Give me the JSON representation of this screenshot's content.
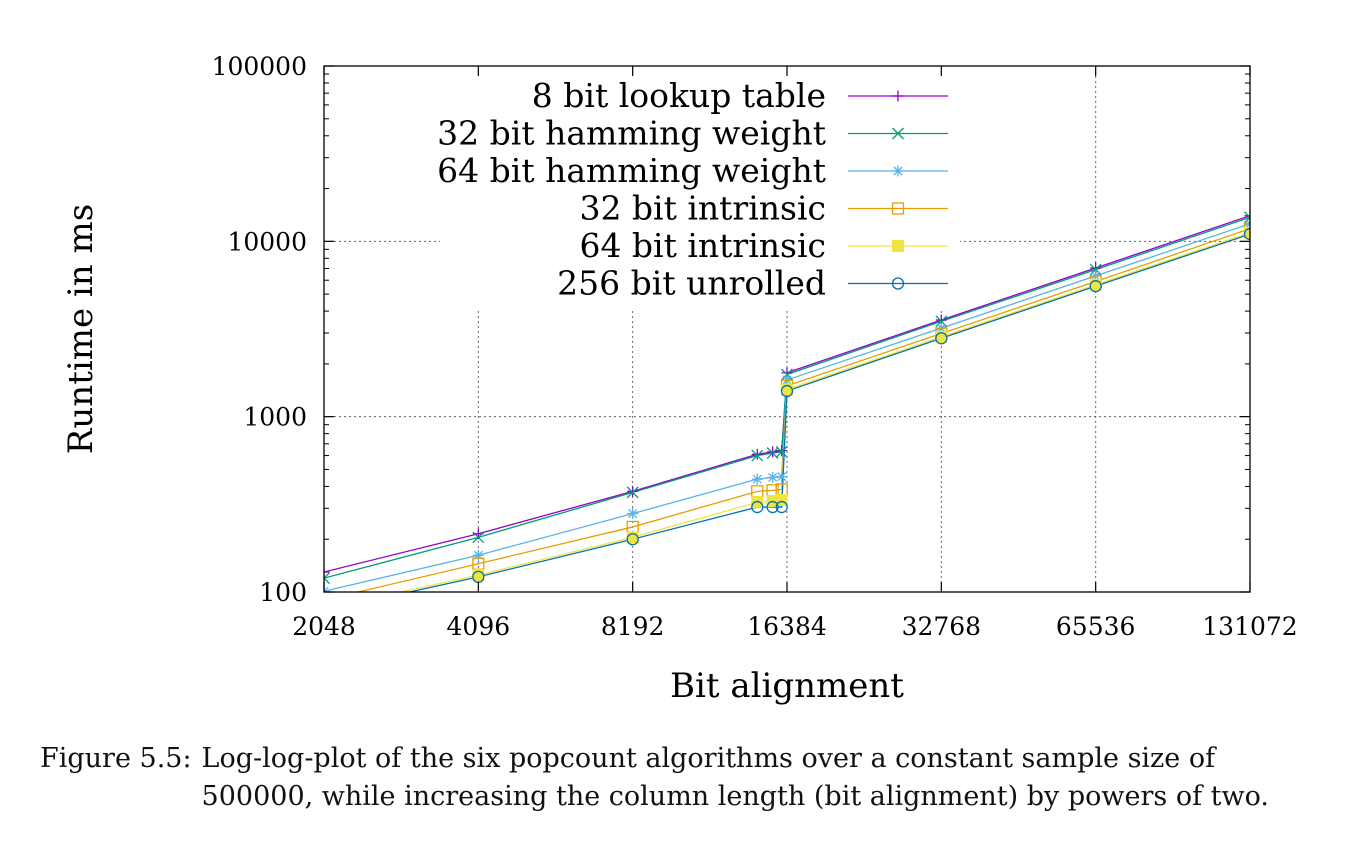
{
  "chart_data": {
    "type": "line",
    "xlabel": "Bit alignment",
    "ylabel": "Runtime in ms",
    "x_scale": "log2",
    "y_scale": "log10",
    "xlim": [
      2048,
      131072
    ],
    "ylim": [
      100,
      100000
    ],
    "x_ticks": [
      "2048",
      "4096",
      "8192",
      "16384",
      "32768",
      "65536",
      "131072"
    ],
    "y_ticks": [
      "100",
      "1000",
      "10000",
      "100000"
    ],
    "grid": true,
    "legend_position": "top-right",
    "x": [
      2048,
      4096,
      8192,
      14336,
      15360,
      16000,
      16384,
      32768,
      65536,
      131072
    ],
    "series": [
      {
        "name": "8 bit lookup table",
        "color": "#9400d3",
        "marker": "plus",
        "values": [
          130,
          215,
          375,
          610,
          630,
          640,
          1780,
          3560,
          7050,
          14000
        ]
      },
      {
        "name": "32 bit hamming weight",
        "color": "#009e73",
        "marker": "cross",
        "values": [
          120,
          205,
          370,
          600,
          620,
          630,
          1740,
          3500,
          6900,
          13700
        ]
      },
      {
        "name": "64 bit hamming weight",
        "color": "#56b4e9",
        "marker": "asterisk",
        "values": [
          101,
          162,
          280,
          440,
          450,
          455,
          1620,
          3200,
          6350,
          12600
        ]
      },
      {
        "name": "32 bit intrinsic",
        "color": "#e69f00",
        "marker": "open-square",
        "values": [
          90,
          145,
          235,
          375,
          380,
          385,
          1500,
          2980,
          5900,
          11800
        ]
      },
      {
        "name": "64 bit intrinsic",
        "color": "#f0e442",
        "marker": "filled-square",
        "values": [
          80,
          125,
          205,
          325,
          330,
          335,
          1430,
          2850,
          5650,
          11200
        ]
      },
      {
        "name": "256 bit unrolled",
        "color": "#0072b2",
        "marker": "open-circle",
        "values": [
          78,
          122,
          200,
          305,
          305,
          305,
          1400,
          2800,
          5550,
          11000
        ]
      }
    ]
  },
  "caption": {
    "label": "Figure 5.5:",
    "text": "Log-log-plot of the six popcount algorithms over a constant sample size of 500000, while increasing the column length (bit alignment) by powers of two."
  }
}
